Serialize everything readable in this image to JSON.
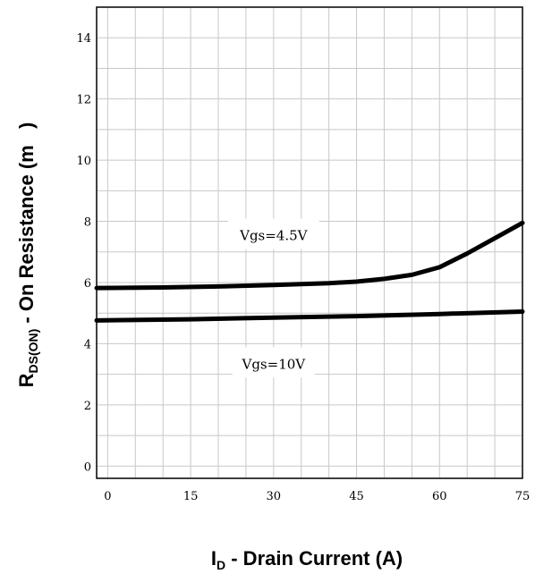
{
  "chart_data": {
    "type": "line",
    "title": "",
    "xlabel": {
      "main": "I",
      "sub": "D",
      "rest": " - Drain Current (A)"
    },
    "ylabel": {
      "main": "R",
      "sub": "DS(ON)",
      "rest": " - On Resistance (m   )"
    },
    "xlim": [
      -2,
      75
    ],
    "ylim": [
      -0.4,
      15
    ],
    "x_ticks": [
      0,
      15,
      30,
      45,
      60,
      75
    ],
    "y_ticks": [
      0,
      2,
      4,
      6,
      8,
      10,
      12,
      14
    ],
    "grid": true,
    "series": [
      {
        "name": "Vgs=4.5V",
        "x": [
          -2,
          10,
          20,
          30,
          40,
          45,
          50,
          55,
          60,
          65,
          70,
          75
        ],
        "y": [
          5.82,
          5.84,
          5.87,
          5.92,
          5.98,
          6.03,
          6.12,
          6.25,
          6.5,
          6.95,
          7.45,
          7.95
        ]
      },
      {
        "name": "Vgs=10V",
        "x": [
          -2,
          15,
          30,
          45,
          60,
          75
        ],
        "y": [
          4.76,
          4.8,
          4.85,
          4.9,
          4.97,
          5.05
        ]
      }
    ],
    "annotations": [
      {
        "text": "Vgs=4.5V",
        "x": 30,
        "y": 7.5
      },
      {
        "text": "Vgs=10V",
        "x": 30,
        "y": 3.3
      }
    ]
  }
}
